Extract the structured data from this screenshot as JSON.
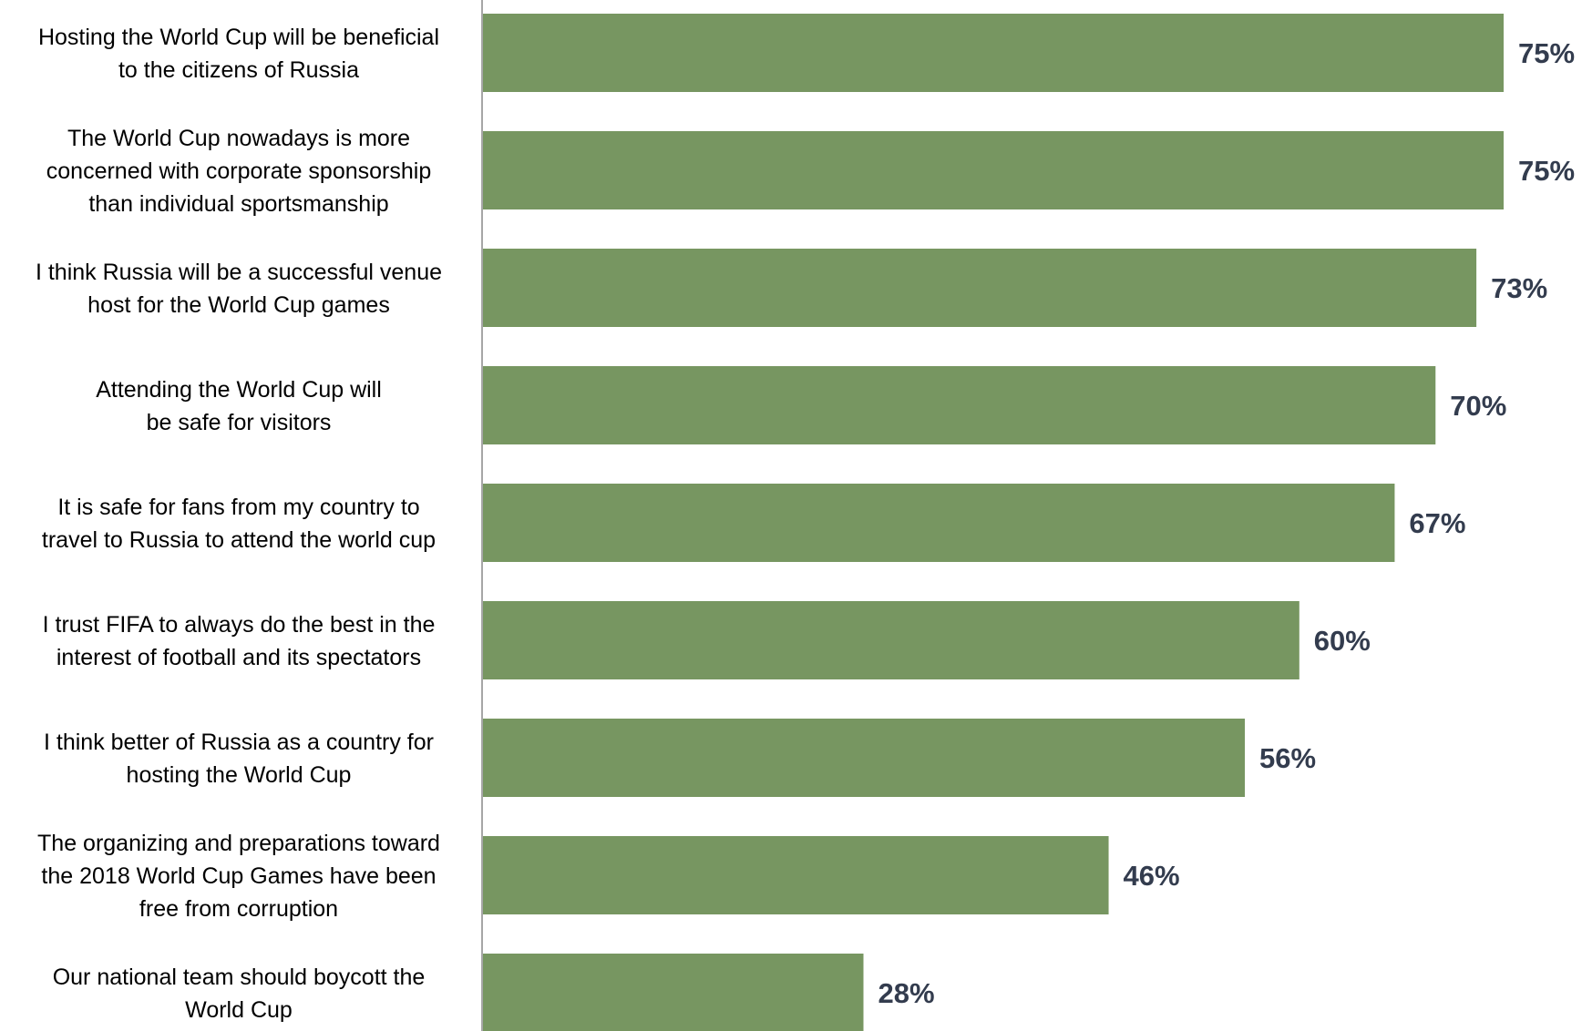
{
  "chart_data": {
    "type": "bar",
    "orientation": "horizontal",
    "categories": [
      "Hosting the World Cup will be beneficial to the citizens of Russia",
      "The World Cup nowadays is more concerned with corporate sponsorship than individual sportsmanship",
      "I think Russia will be a successful venue host for the World Cup games",
      "Attending the World Cup will be safe for visitors",
      "It is safe for fans from my country to travel to Russia to attend the world cup",
      "I trust FIFA to always do the best in the interest of football and its spectators",
      "I think better of Russia as a country for hosting the World Cup",
      "The organizing and preparations toward the 2018 World Cup Games have been free from corruption",
      "Our national team should boycott the World Cup"
    ],
    "category_lines": [
      [
        "Hosting the World Cup will be beneficial",
        "to the citizens of Russia"
      ],
      [
        "The World Cup nowadays is more",
        "concerned with corporate sponsorship",
        "than individual sportsmanship"
      ],
      [
        "I think Russia will be a successful venue",
        "host for the World Cup games"
      ],
      [
        "Attending the World Cup will",
        "be safe for visitors"
      ],
      [
        "It is safe for fans from my country to",
        "travel to Russia to attend the world cup"
      ],
      [
        "I trust FIFA to always do the best in the",
        "interest of football and its spectators"
      ],
      [
        "I think better of Russia as a country for",
        "hosting the World Cup"
      ],
      [
        "The organizing and preparations toward",
        "the 2018 World Cup Games have been",
        "free from corruption"
      ],
      [
        "Our national team should boycott the",
        "World Cup"
      ]
    ],
    "values": [
      75,
      75,
      73,
      70,
      67,
      60,
      56,
      46,
      28
    ],
    "value_labels": [
      "75%",
      "75%",
      "73%",
      "70%",
      "67%",
      "60%",
      "56%",
      "46%",
      "28%"
    ],
    "title": "",
    "xlabel": "",
    "ylabel": "",
    "xlim": [
      0,
      100
    ],
    "grid": false,
    "legend": "none",
    "colors": {
      "bar": "#779661",
      "value_label": "#333c4e",
      "axis_line": "#a6a6a6",
      "category_label": "#000000"
    }
  }
}
